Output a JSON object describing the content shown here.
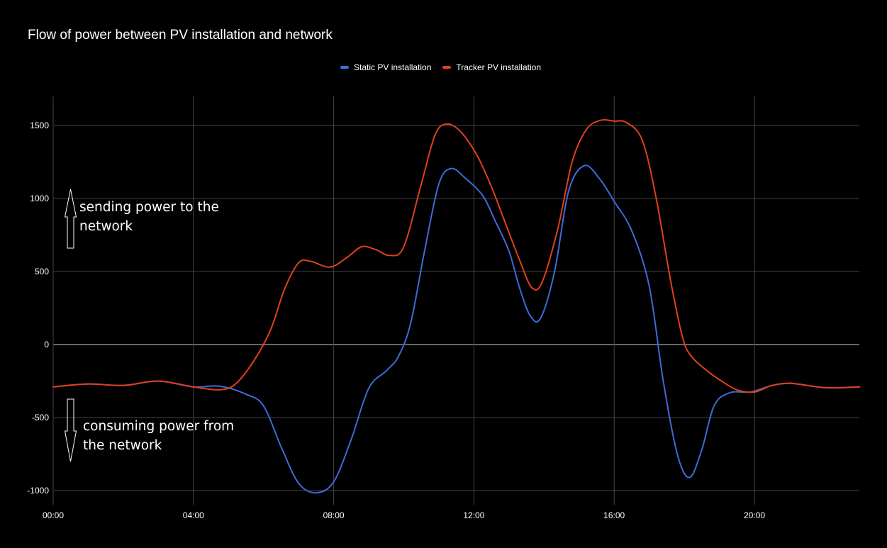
{
  "title": "Flow of power between PV installation and network",
  "legend": [
    {
      "label": "Static PV installation",
      "color": "#3f6ad8"
    },
    {
      "label": "Tracker PV installation",
      "color": "#e0401c"
    }
  ],
  "annotations": {
    "up_line1": "sending power to the",
    "up_line2": "network",
    "down_line1": "consuming power from",
    "down_line2": "the network"
  },
  "colors": {
    "background": "#000000",
    "grid": "#444444",
    "zero_line": "#cccccc",
    "text": "#ffffff"
  },
  "chart_data": {
    "type": "line",
    "title": "Flow of power between PV installation and network",
    "xlabel": "",
    "ylabel": "",
    "x_unit": "hour of day",
    "xlim": [
      0,
      23
    ],
    "ylim": [
      -1100,
      1700
    ],
    "x_ticks": [
      {
        "value": 0,
        "label": "00:00"
      },
      {
        "value": 4,
        "label": "04:00"
      },
      {
        "value": 8,
        "label": "08:00"
      },
      {
        "value": 12,
        "label": "12:00"
      },
      {
        "value": 16,
        "label": "16:00"
      },
      {
        "value": 20,
        "label": "20:00"
      }
    ],
    "y_ticks": [
      {
        "value": 1500,
        "label": "1500"
      },
      {
        "value": 1000,
        "label": "1000"
      },
      {
        "value": 500,
        "label": "500"
      },
      {
        "value": 0,
        "label": "0"
      },
      {
        "value": -500,
        "label": "-500"
      },
      {
        "value": -1000,
        "label": "-1000"
      }
    ],
    "grid": true,
    "legend_position": "top",
    "series": [
      {
        "name": "Static PV installation",
        "color": "#3f6ad8",
        "points": [
          [
            0,
            -290
          ],
          [
            1,
            -270
          ],
          [
            2,
            -280
          ],
          [
            3,
            -250
          ],
          [
            4,
            -290
          ],
          [
            4.75,
            -285
          ],
          [
            5.5,
            -340
          ],
          [
            6,
            -420
          ],
          [
            6.5,
            -700
          ],
          [
            7,
            -950
          ],
          [
            7.5,
            -1015
          ],
          [
            8,
            -940
          ],
          [
            8.5,
            -650
          ],
          [
            9,
            -300
          ],
          [
            9.5,
            -180
          ],
          [
            9.85,
            -80
          ],
          [
            10.2,
            150
          ],
          [
            10.6,
            650
          ],
          [
            11,
            1100
          ],
          [
            11.35,
            1205
          ],
          [
            11.75,
            1140
          ],
          [
            12.25,
            1020
          ],
          [
            12.6,
            850
          ],
          [
            13,
            640
          ],
          [
            13.3,
            390
          ],
          [
            13.6,
            200
          ],
          [
            13.9,
            180
          ],
          [
            14.3,
            500
          ],
          [
            14.7,
            1050
          ],
          [
            15.15,
            1225
          ],
          [
            15.6,
            1130
          ],
          [
            16,
            980
          ],
          [
            16.5,
            780
          ],
          [
            17,
            400
          ],
          [
            17.4,
            -250
          ],
          [
            17.8,
            -750
          ],
          [
            18.15,
            -910
          ],
          [
            18.5,
            -720
          ],
          [
            18.85,
            -420
          ],
          [
            19.3,
            -330
          ],
          [
            19.9,
            -325
          ],
          [
            20.5,
            -280
          ],
          [
            21,
            -265
          ],
          [
            21.5,
            -280
          ],
          [
            22,
            -295
          ],
          [
            22.5,
            -295
          ],
          [
            23,
            -290
          ]
        ]
      },
      {
        "name": "Tracker PV installation",
        "color": "#e0401c",
        "points": [
          [
            0,
            -290
          ],
          [
            1,
            -270
          ],
          [
            2,
            -280
          ],
          [
            3,
            -250
          ],
          [
            4,
            -290
          ],
          [
            4.75,
            -310
          ],
          [
            5.2,
            -270
          ],
          [
            5.7,
            -120
          ],
          [
            6.2,
            100
          ],
          [
            6.6,
            380
          ],
          [
            7,
            560
          ],
          [
            7.35,
            570
          ],
          [
            7.9,
            530
          ],
          [
            8.4,
            600
          ],
          [
            8.8,
            670
          ],
          [
            9.2,
            650
          ],
          [
            9.6,
            610
          ],
          [
            10,
            670
          ],
          [
            10.5,
            1100
          ],
          [
            10.9,
            1440
          ],
          [
            11.25,
            1510
          ],
          [
            11.65,
            1450
          ],
          [
            12.1,
            1290
          ],
          [
            12.5,
            1080
          ],
          [
            12.9,
            830
          ],
          [
            13.3,
            580
          ],
          [
            13.65,
            390
          ],
          [
            13.95,
            430
          ],
          [
            14.4,
            800
          ],
          [
            14.8,
            1250
          ],
          [
            15.2,
            1470
          ],
          [
            15.6,
            1535
          ],
          [
            16,
            1530
          ],
          [
            16.35,
            1520
          ],
          [
            16.8,
            1400
          ],
          [
            17.2,
            1000
          ],
          [
            17.6,
            450
          ],
          [
            17.95,
            50
          ],
          [
            18.2,
            -80
          ],
          [
            18.6,
            -170
          ],
          [
            19,
            -240
          ],
          [
            19.5,
            -310
          ],
          [
            20,
            -325
          ],
          [
            20.5,
            -280
          ],
          [
            21,
            -265
          ],
          [
            21.5,
            -280
          ],
          [
            22,
            -295
          ],
          [
            22.5,
            -295
          ],
          [
            23,
            -290
          ]
        ]
      }
    ]
  }
}
